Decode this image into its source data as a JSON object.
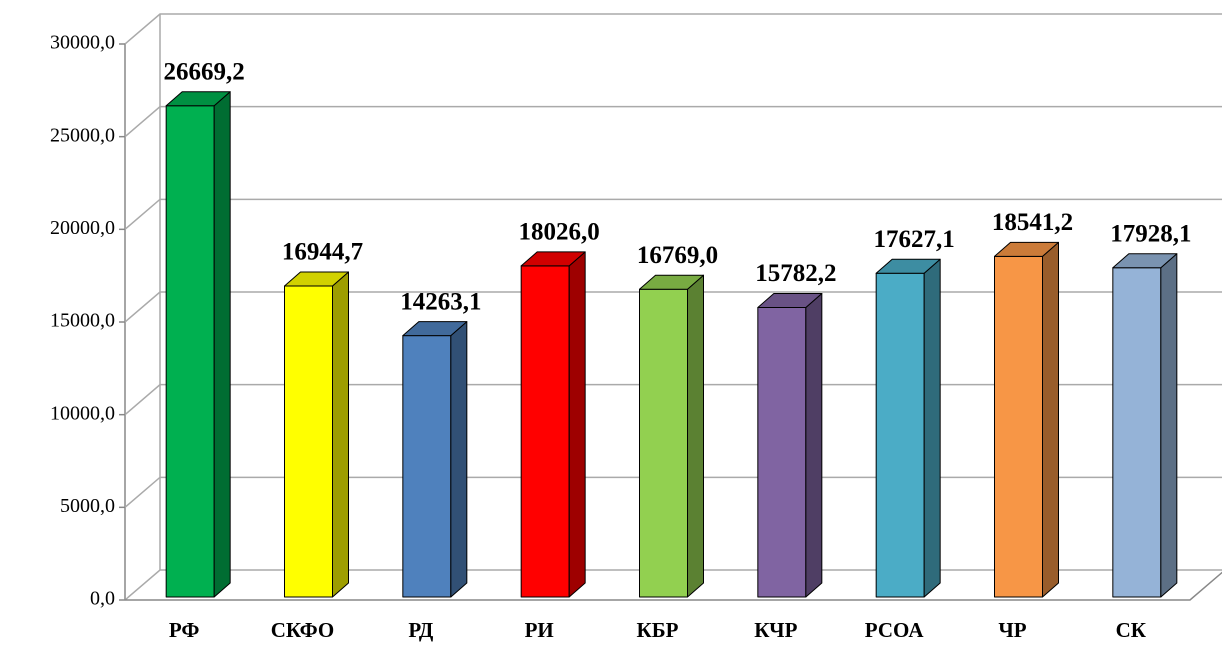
{
  "chart_data": {
    "type": "bar3d",
    "categories": [
      "РФ",
      "СКФО",
      "РД",
      "РИ",
      "КБР",
      "КЧР",
      "РСОА",
      "ЧР",
      "СК"
    ],
    "values": [
      26669.2,
      16944.7,
      14263.1,
      18026.0,
      16769.0,
      15782.2,
      17627.1,
      18541.2,
      17928.1
    ],
    "value_labels": [
      "26669,2",
      "16944,7",
      "14263,1",
      "18026,0",
      "16769,0",
      "15782,2",
      "17627,1",
      "18541,2",
      "17928,1"
    ],
    "colors": [
      "#00b050",
      "#ffff00",
      "#4f81bd",
      "#ff0000",
      "#92d050",
      "#8064a2",
      "#4bacc6",
      "#f79646",
      "#95b3d7"
    ],
    "ylim": [
      0,
      30000
    ],
    "yticks": [
      {
        "value": 0,
        "label": "0,0"
      },
      {
        "value": 5000,
        "label": "5000,0"
      },
      {
        "value": 10000,
        "label": "10000,0"
      },
      {
        "value": 15000,
        "label": "15000,0"
      },
      {
        "value": 20000,
        "label": "20000,0"
      },
      {
        "value": 25000,
        "label": "25000,0"
      },
      {
        "value": 30000,
        "label": "30000,0"
      }
    ],
    "grid": true
  }
}
